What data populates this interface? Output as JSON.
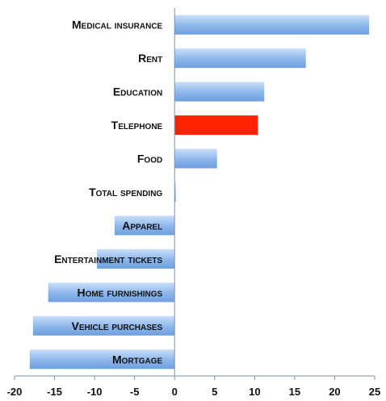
{
  "chart_data": {
    "type": "bar",
    "orientation": "horizontal",
    "categories": [
      "Medical insurance",
      "Rent",
      "Education",
      "Telephone",
      "Food",
      "Total spending",
      "Apparel",
      "Entertainment tickets",
      "Home furnishings",
      "Vehicle purchases",
      "Mortgage"
    ],
    "values": [
      24.3,
      16.4,
      11.2,
      10.4,
      5.3,
      0.1,
      -7.5,
      -9.7,
      -15.8,
      -17.7,
      -18.1
    ],
    "xlim": [
      -20,
      25
    ],
    "xticks": [
      -20,
      -15,
      -10,
      -5,
      0,
      5,
      10,
      15,
      20,
      25
    ],
    "highlight_category": "Telephone",
    "colors": {
      "bar": "#79a9e4",
      "bar_light": "#c9defa",
      "highlight": "#ff2200",
      "axis": "#7f8fa8"
    },
    "grid": false,
    "legend": "none",
    "title": "",
    "xlabel": "",
    "ylabel": ""
  }
}
